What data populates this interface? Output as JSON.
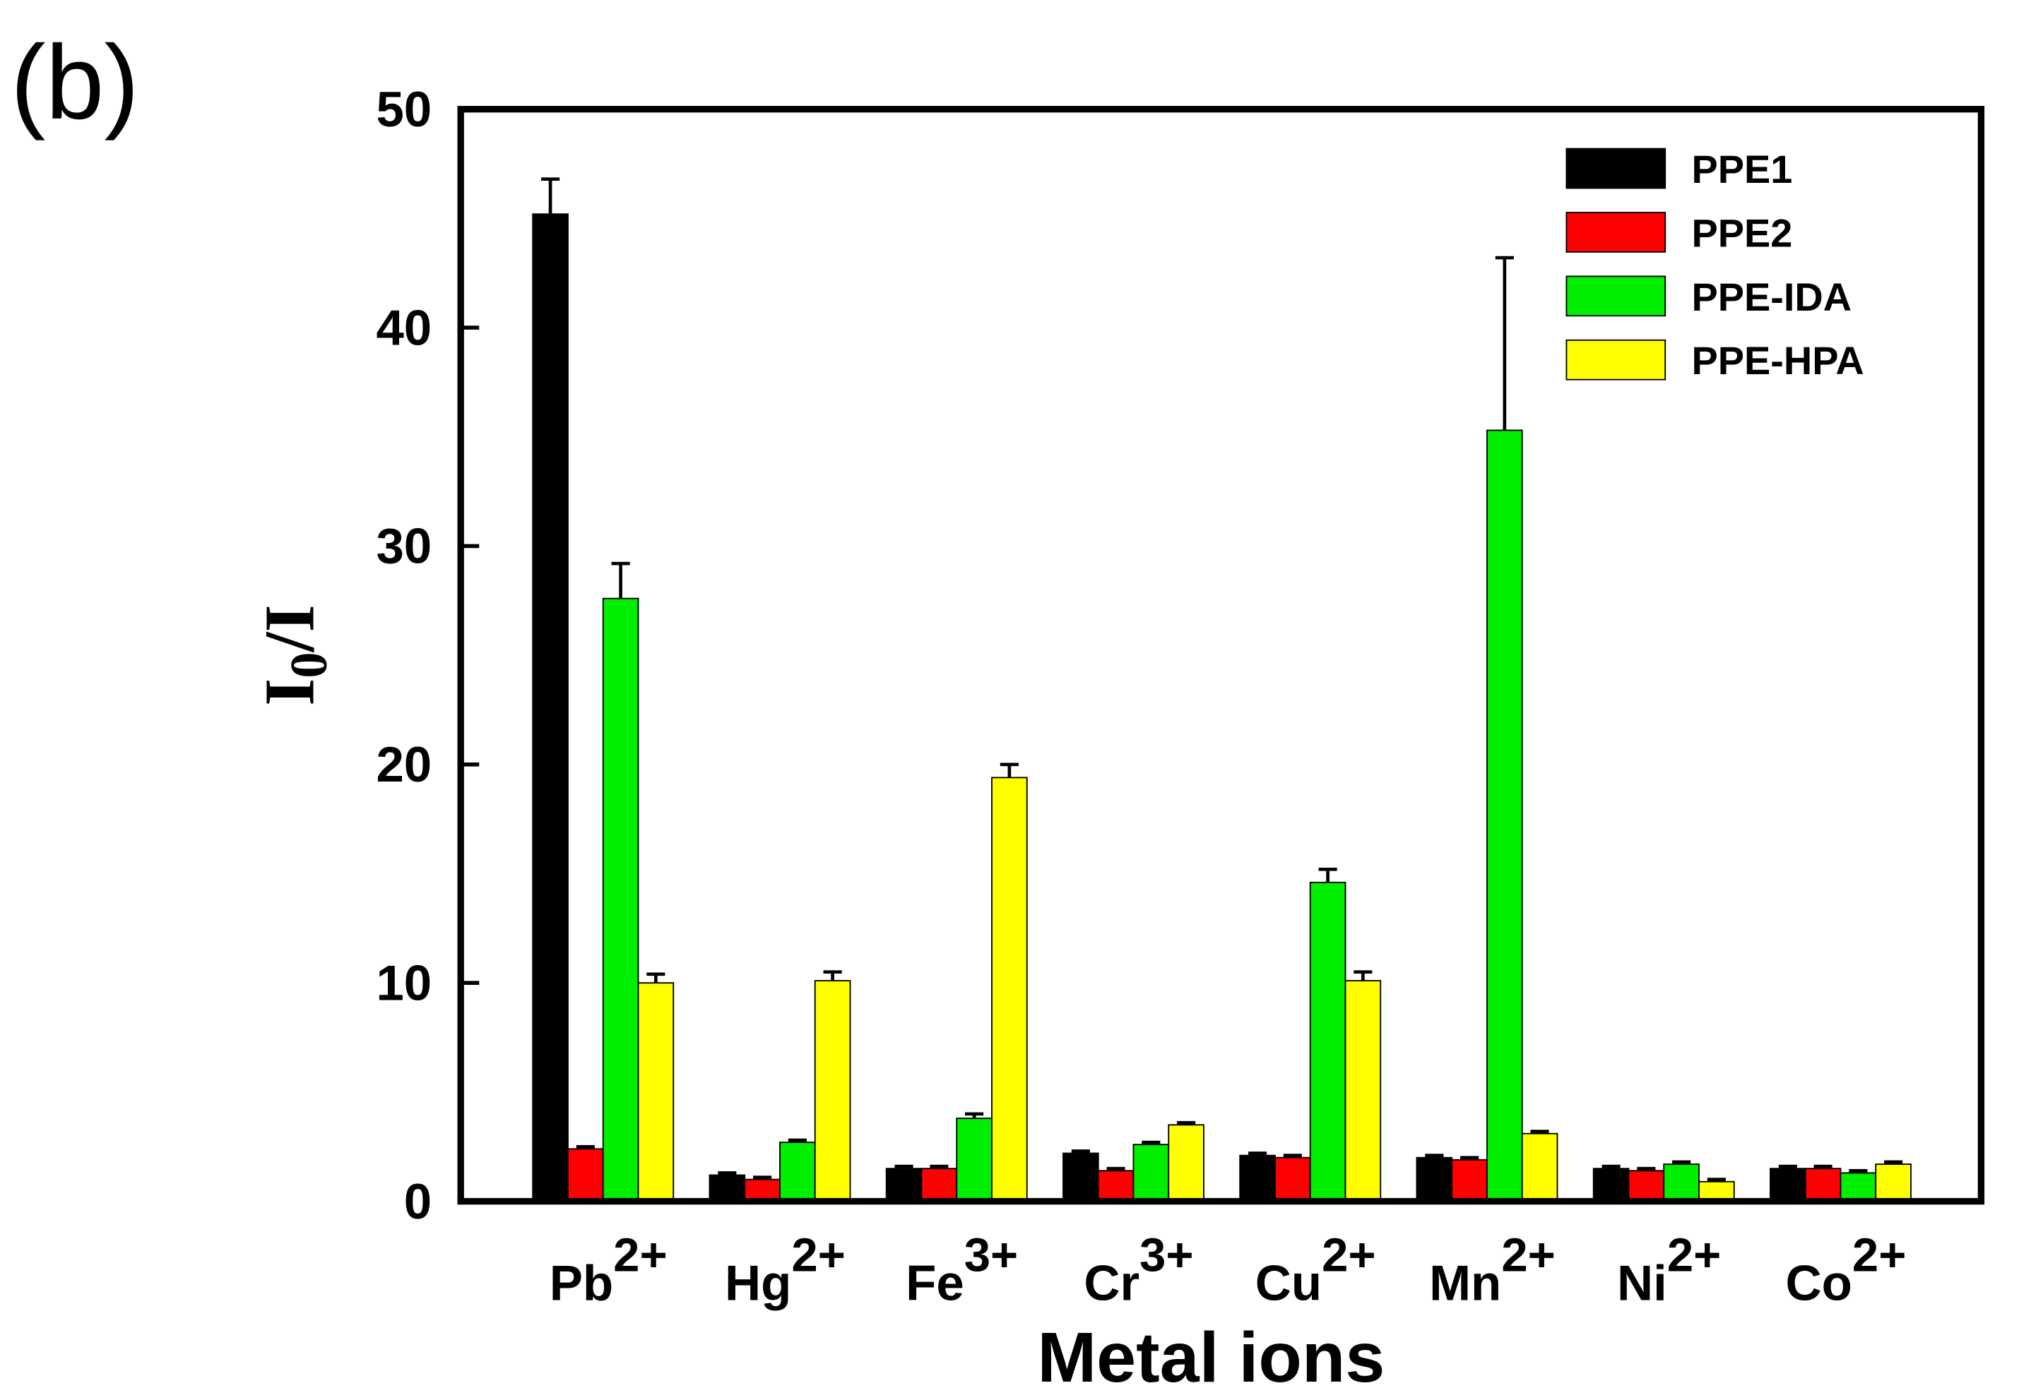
{
  "panel_label": "(b)",
  "chart_data": {
    "type": "bar",
    "ylabel_parts": [
      "I",
      "0",
      "/I"
    ],
    "xlabel": "Metal ions",
    "categories": [
      "Pb",
      "Hg",
      "Fe",
      "Cr",
      "Cu",
      "Mn",
      "Ni",
      "Co"
    ],
    "category_superscripts": [
      "2+",
      "2+",
      "3+",
      "3+",
      "2+",
      "2+",
      "2+",
      "2+"
    ],
    "series": [
      {
        "name": "PPE1",
        "color": "#000000",
        "values": [
          45.2,
          1.2,
          1.5,
          2.2,
          2.1,
          2.0,
          1.5,
          1.5
        ],
        "errors": [
          1.6,
          0.1,
          0.1,
          0.1,
          0.1,
          0.1,
          0.1,
          0.1
        ]
      },
      {
        "name": "PPE2",
        "color": "#ff0000",
        "values": [
          2.4,
          1.0,
          1.5,
          1.4,
          2.0,
          1.9,
          1.4,
          1.5
        ],
        "errors": [
          0.1,
          0.1,
          0.1,
          0.1,
          0.1,
          0.1,
          0.1,
          0.1
        ]
      },
      {
        "name": "PPE-IDA",
        "color": "#00ee00",
        "values": [
          27.6,
          2.7,
          3.8,
          2.6,
          14.6,
          35.3,
          1.7,
          1.3
        ],
        "errors": [
          1.6,
          0.1,
          0.2,
          0.1,
          0.6,
          7.9,
          0.1,
          0.1
        ]
      },
      {
        "name": "PPE-HPA",
        "color": "#ffff00",
        "values": [
          10.0,
          10.1,
          19.4,
          3.5,
          10.1,
          3.1,
          0.9,
          1.7
        ],
        "errors": [
          0.4,
          0.4,
          0.6,
          0.1,
          0.4,
          0.1,
          0.1,
          0.1
        ]
      }
    ],
    "ylim": [
      0,
      50
    ],
    "yticks": [
      0,
      10,
      20,
      30,
      40,
      50
    ],
    "legend": "upper right"
  }
}
